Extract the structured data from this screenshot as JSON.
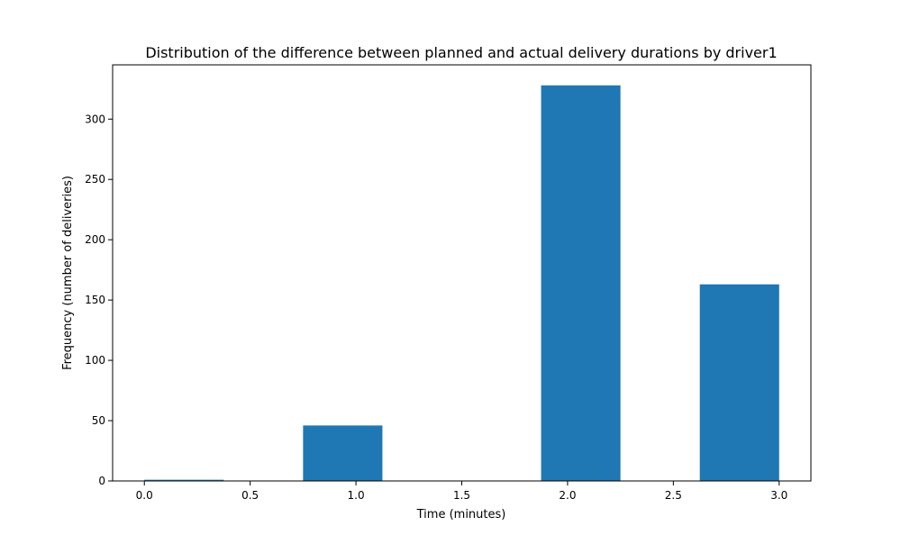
{
  "chart_data": {
    "type": "bar",
    "title": "Distribution of the difference between planned and actual delivery durations by driver1",
    "xlabel": "Time (minutes)",
    "ylabel": "Frequency (number of deliveries)",
    "xlim": [
      -0.15,
      3.15
    ],
    "ylim": [
      0,
      345
    ],
    "x_ticks": [
      0.0,
      0.5,
      1.0,
      1.5,
      2.0,
      2.5,
      3.0
    ],
    "x_tick_labels": [
      "0.0",
      "0.5",
      "1.0",
      "1.5",
      "2.0",
      "2.5",
      "3.0"
    ],
    "y_ticks": [
      0,
      50,
      100,
      150,
      200,
      250,
      300
    ],
    "y_tick_labels": [
      "0",
      "50",
      "100",
      "150",
      "200",
      "250",
      "300"
    ],
    "bins": [
      {
        "x_start": 0.0,
        "x_end": 0.375,
        "value": 1
      },
      {
        "x_start": 0.375,
        "x_end": 0.75,
        "value": 0
      },
      {
        "x_start": 0.75,
        "x_end": 1.125,
        "value": 46
      },
      {
        "x_start": 1.125,
        "x_end": 1.5,
        "value": 0
      },
      {
        "x_start": 1.5,
        "x_end": 1.875,
        "value": 0
      },
      {
        "x_start": 1.875,
        "x_end": 2.25,
        "value": 328
      },
      {
        "x_start": 2.25,
        "x_end": 2.625,
        "value": 0
      },
      {
        "x_start": 2.625,
        "x_end": 3.0,
        "value": 163
      }
    ],
    "grid": false,
    "legend": "none",
    "bar_color": "#1f77b4"
  }
}
